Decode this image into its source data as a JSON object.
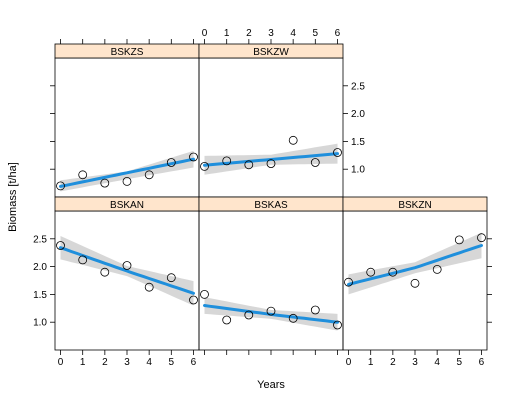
{
  "chart_data": {
    "type": "scatter",
    "xlabel": "Years",
    "ylabel": "Biomass [t/ha]",
    "xlim": [
      -0.25,
      6.25
    ],
    "ylim": [
      0.5,
      3.0
    ],
    "x_ticks": [
      0,
      1,
      2,
      3,
      4,
      5,
      6
    ],
    "y_ticks": [
      1.0,
      1.5,
      2.0,
      2.5
    ],
    "y_tick_labels": [
      "1.0",
      "1.5",
      "2.0",
      "2.5"
    ],
    "strip_color": "#ffe5cc",
    "point_color": "#000000",
    "fit_color": "#1f8fdc",
    "band_color": "#d0d0d0",
    "panels": [
      {
        "name": "BSKZS",
        "row": 0,
        "col": 0,
        "x": [
          0,
          1,
          2,
          3,
          4,
          5,
          6
        ],
        "y": [
          0.7,
          0.9,
          0.75,
          0.78,
          0.9,
          1.12,
          1.22
        ],
        "fit": [
          [
            0,
            0.69
          ],
          [
            6,
            1.18
          ]
        ],
        "band_lower": [
          [
            0,
            0.6
          ],
          [
            3,
            0.82
          ],
          [
            6,
            1.03
          ]
        ],
        "band_upper": [
          [
            0,
            0.8
          ],
          [
            3,
            0.96
          ],
          [
            6,
            1.33
          ]
        ]
      },
      {
        "name": "BSKZW",
        "row": 0,
        "col": 1,
        "x": [
          0,
          1,
          2,
          3,
          4,
          5,
          6
        ],
        "y": [
          1.05,
          1.15,
          1.08,
          1.1,
          1.52,
          1.12,
          1.3
        ],
        "fit": [
          [
            0,
            1.07
          ],
          [
            6,
            1.28
          ]
        ],
        "band_lower": [
          [
            0,
            0.9
          ],
          [
            3,
            1.08
          ],
          [
            6,
            1.1
          ]
        ],
        "band_upper": [
          [
            0,
            1.24
          ],
          [
            3,
            1.26
          ],
          [
            6,
            1.46
          ]
        ]
      },
      {
        "name": "BSKAN",
        "row": 1,
        "col": 0,
        "x": [
          0,
          1,
          2,
          3,
          4,
          5,
          6
        ],
        "y": [
          2.38,
          2.12,
          1.9,
          2.02,
          1.63,
          1.8,
          1.4
        ],
        "fit": [
          [
            0,
            2.34
          ],
          [
            3,
            1.92
          ],
          [
            6,
            1.52
          ]
        ],
        "band_lower": [
          [
            0,
            2.13
          ],
          [
            3,
            1.83
          ],
          [
            6,
            1.3
          ]
        ],
        "band_upper": [
          [
            0,
            2.55
          ],
          [
            3,
            2.01
          ],
          [
            6,
            1.74
          ]
        ]
      },
      {
        "name": "BSKAS",
        "row": 1,
        "col": 1,
        "x": [
          0,
          1,
          2,
          3,
          4,
          5,
          6
        ],
        "y": [
          1.5,
          1.04,
          1.13,
          1.2,
          1.07,
          1.22,
          0.95
        ],
        "fit": [
          [
            0,
            1.3
          ],
          [
            3,
            1.14
          ],
          [
            6,
            1.0
          ]
        ],
        "band_lower": [
          [
            0,
            1.15
          ],
          [
            3,
            1.06
          ],
          [
            6,
            0.85
          ]
        ],
        "band_upper": [
          [
            0,
            1.45
          ],
          [
            3,
            1.22
          ],
          [
            6,
            1.15
          ]
        ]
      },
      {
        "name": "BSKZN",
        "row": 1,
        "col": 2,
        "x": [
          0,
          1,
          2,
          3,
          4,
          5,
          6
        ],
        "y": [
          1.72,
          1.9,
          1.9,
          1.7,
          1.95,
          2.48,
          2.52
        ],
        "fit": [
          [
            0,
            1.68
          ],
          [
            3,
            1.98
          ],
          [
            6,
            2.38
          ]
        ],
        "band_lower": [
          [
            0,
            1.5
          ],
          [
            3,
            1.88
          ],
          [
            6,
            2.15
          ]
        ],
        "band_upper": [
          [
            0,
            1.86
          ],
          [
            3,
            2.08
          ],
          [
            6,
            2.61
          ]
        ]
      }
    ]
  }
}
